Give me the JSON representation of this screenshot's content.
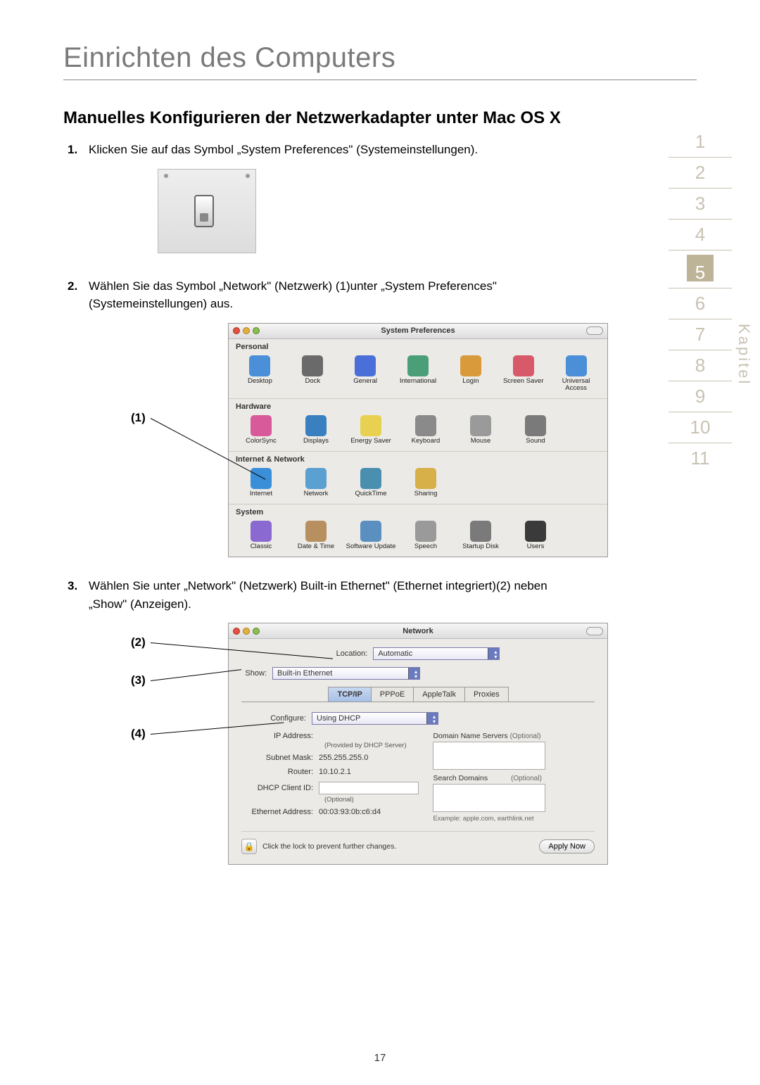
{
  "page": {
    "title": "Einrichten des Computers",
    "section_heading": "Manuelles Konfigurieren der Netzwerkadapter unter Mac OS X",
    "page_number": "17"
  },
  "chapter_sidebar": {
    "label": "Kapitel",
    "numbers": [
      "1",
      "2",
      "3",
      "4",
      "5",
      "6",
      "7",
      "8",
      "9",
      "10",
      "11"
    ],
    "active": "5",
    "color_inactive": "#c9c2b3",
    "color_active_bg": "#bdb397"
  },
  "steps": {
    "step1": {
      "num": "1.",
      "text": "Klicken Sie auf das Symbol  „System Preferences\" (Systemeinstellungen)."
    },
    "step2": {
      "num": "2.",
      "text": "Wählen Sie das Symbol „Network\" (Netzwerk) (1)unter „System Preferences\" (Systemeinstellungen) aus."
    },
    "step3": {
      "num": "3.",
      "text": "Wählen Sie unter „Network\" (Netzwerk) Built-in Ethernet\" (Ethernet integriert)(2) neben „Show\" (Anzeigen)."
    }
  },
  "callouts": {
    "c1": "(1)",
    "c2": "(2)",
    "c3": "(3)",
    "c4": "(4)"
  },
  "sysprefs_window": {
    "title": "System Preferences",
    "sections": [
      {
        "label": "Personal",
        "items": [
          {
            "label": "Desktop",
            "color": "#4a8fd8"
          },
          {
            "label": "Dock",
            "color": "#6a6a6a"
          },
          {
            "label": "General",
            "color": "#4a6fd8"
          },
          {
            "label": "International",
            "color": "#4a9f78"
          },
          {
            "label": "Login",
            "color": "#d89a3a"
          },
          {
            "label": "Screen Saver",
            "color": "#d85a6a"
          },
          {
            "label": "Universal Access",
            "color": "#4a8fd8"
          }
        ]
      },
      {
        "label": "Hardware",
        "items": [
          {
            "label": "ColorSync",
            "color": "#d85a9a"
          },
          {
            "label": "Displays",
            "color": "#3a7fbf"
          },
          {
            "label": "Energy Saver",
            "color": "#e8d050"
          },
          {
            "label": "Keyboard",
            "color": "#8a8a8a"
          },
          {
            "label": "Mouse",
            "color": "#9a9a9a"
          },
          {
            "label": "Sound",
            "color": "#7a7a7a"
          }
        ]
      },
      {
        "label": "Internet & Network",
        "items": [
          {
            "label": "Internet",
            "color": "#3a8fd8"
          },
          {
            "label": "Network",
            "color": "#5aa0d0"
          },
          {
            "label": "QuickTime",
            "color": "#4a8fb0"
          },
          {
            "label": "Sharing",
            "color": "#d8b04a"
          }
        ]
      },
      {
        "label": "System",
        "items": [
          {
            "label": "Classic",
            "color": "#8a6ad0"
          },
          {
            "label": "Date & Time",
            "color": "#b89060"
          },
          {
            "label": "Software Update",
            "color": "#5a8fc0"
          },
          {
            "label": "Speech",
            "color": "#9a9a9a"
          },
          {
            "label": "Startup Disk",
            "color": "#7a7a7a"
          },
          {
            "label": "Users",
            "color": "#3a3a3a"
          }
        ]
      }
    ]
  },
  "network_window": {
    "title": "Network",
    "location_label": "Location:",
    "location_value": "Automatic",
    "show_label": "Show:",
    "show_value": "Built-in Ethernet",
    "tabs": [
      "TCP/IP",
      "PPPoE",
      "AppleTalk",
      "Proxies"
    ],
    "active_tab": "TCP/IP",
    "configure_label": "Configure:",
    "configure_value": "Using DHCP",
    "fields": {
      "ip_address_label": "IP Address:",
      "ip_address_value": "",
      "ip_address_sub": "(Provided by DHCP Server)",
      "subnet_label": "Subnet Mask:",
      "subnet_value": "255.255.255.0",
      "router_label": "Router:",
      "router_value": "10.10.2.1",
      "dhcp_client_label": "DHCP Client ID:",
      "dhcp_client_value": "",
      "dhcp_client_sub": "(Optional)",
      "ethernet_label": "Ethernet Address:",
      "ethernet_value": "00:03:93:0b:c6:d4"
    },
    "right_col": {
      "dns_label": "Domain Name Servers",
      "dns_opt": "(Optional)",
      "search_label": "Search Domains",
      "search_opt": "(Optional)",
      "example": "Example: apple.com, earthlink.net"
    },
    "footer": {
      "lock_text": "Click the lock to prevent further changes.",
      "apply_label": "Apply Now"
    }
  }
}
